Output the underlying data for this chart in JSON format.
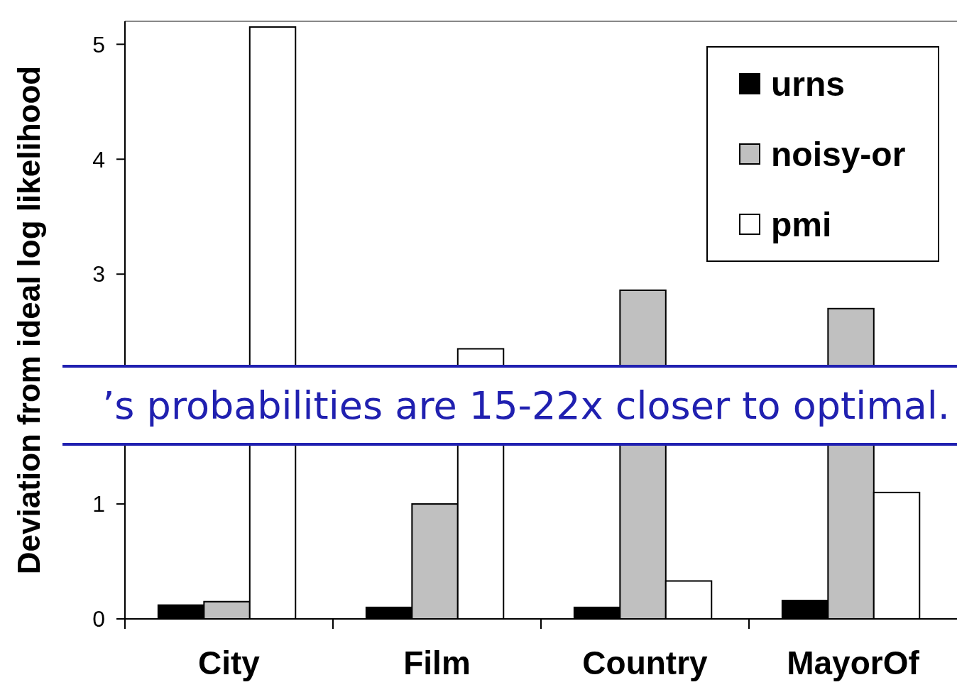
{
  "chart_data": {
    "type": "bar",
    "ylabel": "Deviation from ideal log likelihood",
    "categories": [
      "City",
      "Film",
      "Country",
      "MayorOf"
    ],
    "series": [
      {
        "name": "urns",
        "color": "#000000",
        "values": [
          0.12,
          0.1,
          0.1,
          0.16
        ]
      },
      {
        "name": "noisy-or",
        "color": "#c0c0c0",
        "values": [
          0.15,
          1.0,
          2.86,
          2.7
        ]
      },
      {
        "name": "pmi",
        "color": "#ffffff",
        "values": [
          5.15,
          2.35,
          0.33,
          1.1
        ]
      }
    ],
    "ylim": [
      0,
      5.2
    ],
    "yticks": [
      0,
      1,
      3,
      4,
      5
    ],
    "legend": "top right",
    "annotations": [
      "’s probabilities are 15-22x closer to optimal."
    ]
  }
}
